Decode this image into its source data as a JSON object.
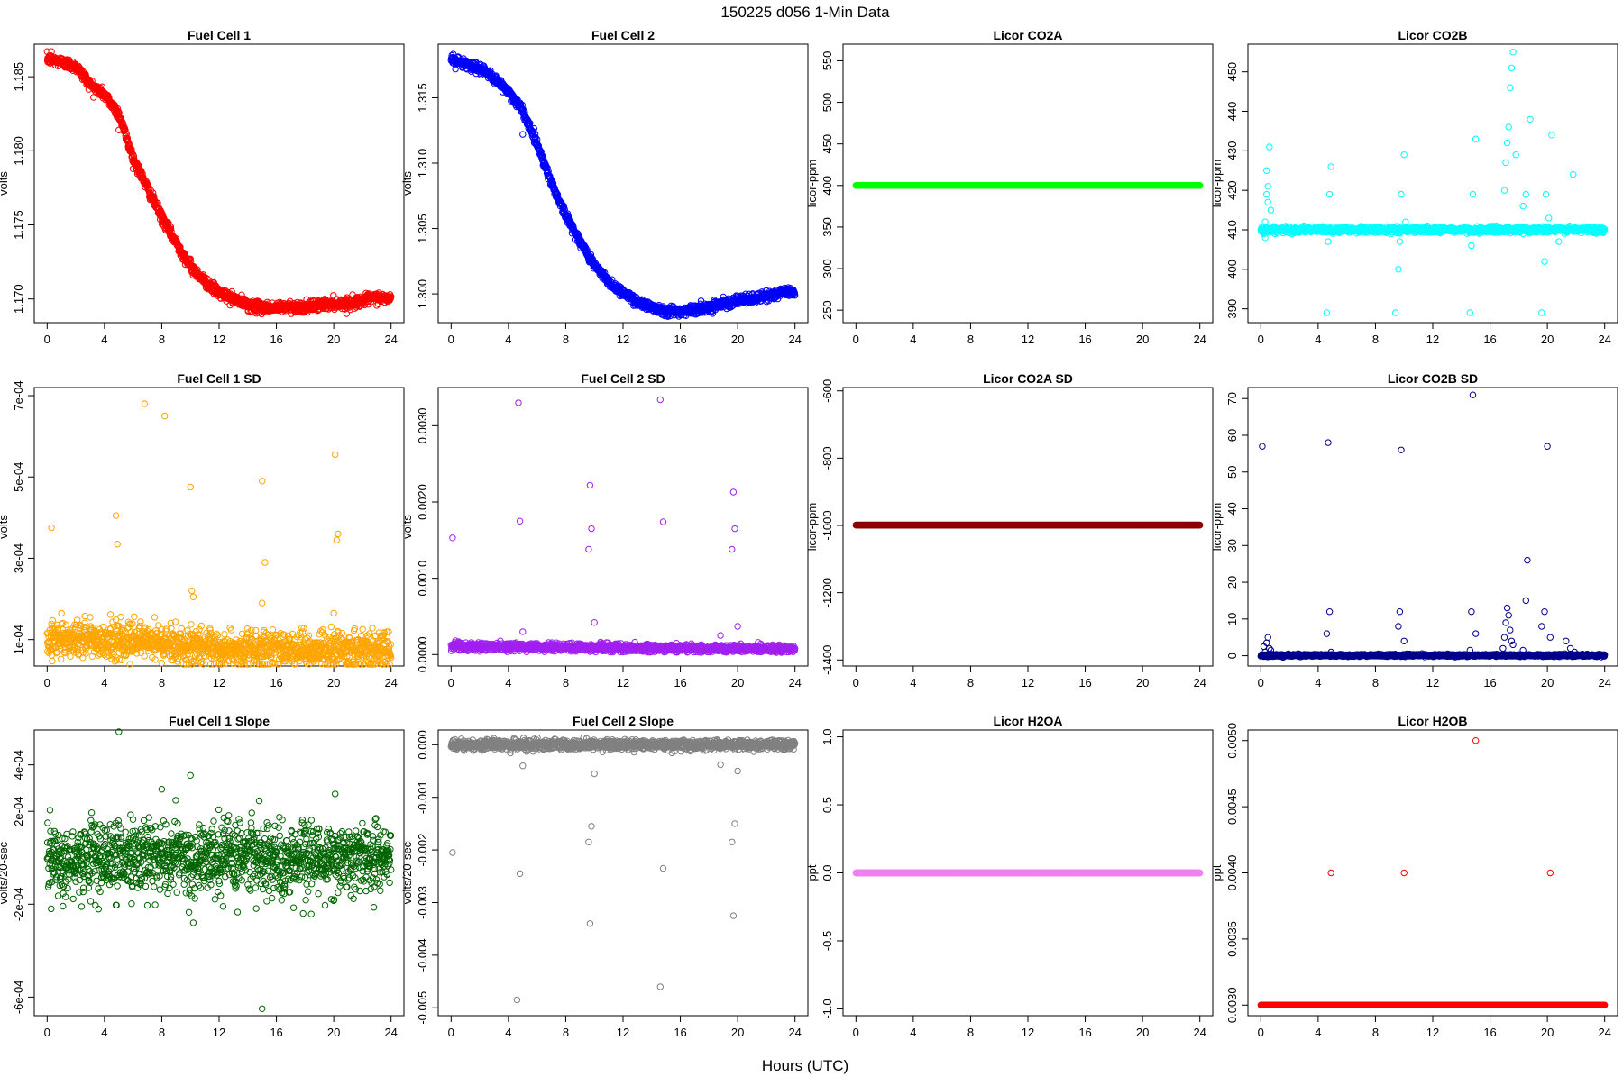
{
  "figure": {
    "title": "150225    d056    1-Min Data",
    "xlabel": "Hours (UTC)"
  },
  "chart_data": [
    {
      "type": "scatter",
      "title": "Fuel Cell 1",
      "ylabel": "volts",
      "color": "#ff0000",
      "xlim": [
        -0.9,
        24.9
      ],
      "ylim": [
        1.1684,
        1.1872
      ],
      "xticks": [
        0,
        4,
        8,
        12,
        16,
        20,
        24
      ],
      "yticks": [
        1.17,
        1.175,
        1.18,
        1.185
      ],
      "ytick_labels": [
        "1.170",
        "1.175",
        "1.180",
        "1.185"
      ],
      "curve": [
        [
          0,
          1.1862
        ],
        [
          1,
          1.186
        ],
        [
          2,
          1.1857
        ],
        [
          3,
          1.1845
        ],
        [
          4,
          1.1838
        ],
        [
          5,
          1.1825
        ],
        [
          6,
          1.1795
        ],
        [
          7,
          1.1775
        ],
        [
          8,
          1.1755
        ],
        [
          9,
          1.1738
        ],
        [
          10,
          1.1722
        ],
        [
          11,
          1.1712
        ],
        [
          12,
          1.1704
        ],
        [
          13,
          1.17
        ],
        [
          14,
          1.1696
        ],
        [
          15,
          1.1694
        ],
        [
          16,
          1.1694
        ],
        [
          17,
          1.1695
        ],
        [
          18,
          1.1694
        ],
        [
          19,
          1.1696
        ],
        [
          20,
          1.1697
        ],
        [
          21,
          1.1697
        ],
        [
          22,
          1.1699
        ],
        [
          23,
          1.1701
        ],
        [
          24,
          1.17
        ]
      ],
      "curve_noise": 0.00018,
      "outliers": [
        [
          5.0,
          1.1814
        ],
        [
          10.0,
          1.1727
        ],
        [
          0.3,
          1.1867
        ]
      ]
    },
    {
      "type": "scatter",
      "title": "Fuel Cell 2",
      "ylabel": "volts",
      "color": "#0000ff",
      "xlim": [
        -0.9,
        24.9
      ],
      "ylim": [
        1.2978,
        1.3191
      ],
      "xticks": [
        0,
        4,
        8,
        12,
        16,
        20,
        24
      ],
      "yticks": [
        1.3,
        1.305,
        1.31,
        1.315
      ],
      "ytick_labels": [
        "1.300",
        "1.305",
        "1.310",
        "1.315"
      ],
      "curve": [
        [
          0,
          1.318
        ],
        [
          1,
          1.3176
        ],
        [
          2,
          1.3172
        ],
        [
          3,
          1.3165
        ],
        [
          4,
          1.3155
        ],
        [
          5,
          1.314
        ],
        [
          6,
          1.3115
        ],
        [
          7,
          1.3085
        ],
        [
          8,
          1.306
        ],
        [
          9,
          1.304
        ],
        [
          10,
          1.3022
        ],
        [
          11,
          1.3009
        ],
        [
          12,
          1.3001
        ],
        [
          13,
          1.2994
        ],
        [
          14,
          1.299
        ],
        [
          15,
          1.2987
        ],
        [
          16,
          1.2987
        ],
        [
          17,
          1.2988
        ],
        [
          18,
          1.299
        ],
        [
          19,
          1.2993
        ],
        [
          20,
          1.2995
        ],
        [
          21,
          1.2996
        ],
        [
          22,
          1.2998
        ],
        [
          23,
          1.3001
        ],
        [
          24,
          1.3002
        ]
      ],
      "curve_noise": 0.00018,
      "outliers": [
        [
          5.0,
          1.3122
        ],
        [
          0.3,
          1.3172
        ]
      ]
    },
    {
      "type": "scatter",
      "title": "Licor CO2A",
      "ylabel": "licor-ppm",
      "color": "#00ff00",
      "xlim": [
        -0.9,
        24.9
      ],
      "ylim": [
        235,
        570
      ],
      "xticks": [
        0,
        4,
        8,
        12,
        16,
        20,
        24
      ],
      "yticks": [
        250,
        300,
        350,
        400,
        450,
        500,
        550
      ],
      "ytick_labels": [
        "250",
        "300",
        "350",
        "400",
        "450",
        "500",
        "550"
      ],
      "constant": 400
    },
    {
      "type": "scatter",
      "title": "Licor CO2B",
      "ylabel": "licor-ppm",
      "color": "#00ffff",
      "xlim": [
        -0.9,
        24.9
      ],
      "ylim": [
        386.5,
        457
      ],
      "xticks": [
        0,
        4,
        8,
        12,
        16,
        20,
        24
      ],
      "yticks": [
        390,
        400,
        410,
        420,
        430,
        440,
        450
      ],
      "ytick_labels": [
        "390",
        "400",
        "410",
        "420",
        "430",
        "440",
        "450"
      ],
      "constant": 410,
      "curve_noise": 0.35,
      "outliers": [
        [
          0.2,
          409
        ],
        [
          0.3,
          412
        ],
        [
          0.4,
          419
        ],
        [
          0.5,
          421
        ],
        [
          0.4,
          425
        ],
        [
          0.6,
          431
        ],
        [
          0.5,
          417
        ],
        [
          0.7,
          415
        ],
        [
          0.3,
          408
        ],
        [
          4.6,
          389
        ],
        [
          4.7,
          407
        ],
        [
          4.8,
          419
        ],
        [
          4.9,
          426
        ],
        [
          9.4,
          389
        ],
        [
          9.6,
          400
        ],
        [
          9.7,
          407
        ],
        [
          9.8,
          419
        ],
        [
          10.0,
          429
        ],
        [
          10.1,
          412
        ],
        [
          14.6,
          389
        ],
        [
          14.7,
          406
        ],
        [
          14.8,
          419
        ],
        [
          15.0,
          433
        ],
        [
          17.0,
          420
        ],
        [
          17.1,
          427
        ],
        [
          17.2,
          432
        ],
        [
          17.3,
          436
        ],
        [
          17.4,
          446
        ],
        [
          17.5,
          451
        ],
        [
          17.6,
          455
        ],
        [
          17.8,
          429
        ],
        [
          18.3,
          416
        ],
        [
          18.5,
          419
        ],
        [
          18.8,
          438
        ],
        [
          19.6,
          389
        ],
        [
          19.8,
          402
        ],
        [
          19.9,
          419
        ],
        [
          20.1,
          413
        ],
        [
          20.3,
          434
        ],
        [
          20.8,
          407
        ],
        [
          21.8,
          424
        ]
      ]
    },
    {
      "type": "scatter",
      "title": "Fuel Cell 1 SD",
      "ylabel": "volts",
      "color": "#ffa500",
      "xlim": [
        -0.9,
        24.9
      ],
      "ylim": [
        3.5e-05,
        0.00072
      ],
      "xticks": [
        0,
        4,
        8,
        12,
        16,
        20,
        24
      ],
      "yticks": [
        0.0001,
        0.0003,
        0.0005,
        0.0007
      ],
      "ytick_labels": [
        "1e-04",
        "3e-04",
        "5e-04",
        "7e-04"
      ],
      "baseline": [
        [
          0,
          0.000105
        ],
        [
          6,
          9.5e-05
        ],
        [
          12,
          8e-05
        ],
        [
          18,
          7.5e-05
        ],
        [
          24,
          7.5e-05
        ]
      ],
      "baseline_noise": 2.2e-05,
      "outliers": [
        [
          0.3,
          0.000375
        ],
        [
          4.8,
          0.000405
        ],
        [
          4.9,
          0.000335
        ],
        [
          6.8,
          0.00068
        ],
        [
          8.2,
          0.00065
        ],
        [
          10.0,
          0.000475
        ],
        [
          10.1,
          0.00022
        ],
        [
          10.2,
          0.000205
        ],
        [
          15.0,
          0.00049
        ],
        [
          15.2,
          0.00029
        ],
        [
          15.0,
          0.00019
        ],
        [
          20.1,
          0.000555
        ],
        [
          20.2,
          0.000345
        ],
        [
          20.3,
          0.00036
        ],
        [
          20.0,
          0.000165
        ],
        [
          7.5,
          0.000155
        ],
        [
          3.0,
          0.000155
        ],
        [
          1.0,
          0.000165
        ]
      ]
    },
    {
      "type": "scatter",
      "title": "Fuel Cell 2 SD",
      "ylabel": "volts",
      "color": "#a020f0",
      "xlim": [
        -0.9,
        24.9
      ],
      "ylim": [
        -0.00015,
        0.0035
      ],
      "xticks": [
        0,
        4,
        8,
        12,
        16,
        20,
        24
      ],
      "yticks": [
        0.0,
        0.001,
        0.002,
        0.003
      ],
      "ytick_labels": [
        "0.0000",
        "0.0010",
        "0.0020",
        "0.0030"
      ],
      "baseline": [
        [
          0,
          0.00011
        ],
        [
          12,
          9e-05
        ],
        [
          24,
          7e-05
        ]
      ],
      "baseline_noise": 2.5e-05,
      "outliers": [
        [
          0.1,
          0.00153
        ],
        [
          4.7,
          0.0033
        ],
        [
          4.8,
          0.00175
        ],
        [
          5.0,
          0.0003
        ],
        [
          9.6,
          0.00138
        ],
        [
          9.8,
          0.00165
        ],
        [
          9.7,
          0.00222
        ],
        [
          10.0,
          0.00042
        ],
        [
          14.6,
          0.00334
        ],
        [
          14.8,
          0.00174
        ],
        [
          19.6,
          0.00138
        ],
        [
          19.7,
          0.00213
        ],
        [
          19.8,
          0.00165
        ],
        [
          20.0,
          0.00037
        ],
        [
          18.8,
          0.00025
        ]
      ]
    },
    {
      "type": "scatter",
      "title": "Licor CO2A SD",
      "ylabel": "licor-ppm",
      "color": "#8b0000",
      "xlim": [
        -0.9,
        24.9
      ],
      "ylim": [
        -1418,
        -590
      ],
      "xticks": [
        0,
        4,
        8,
        12,
        16,
        20,
        24
      ],
      "yticks": [
        -1400,
        -1200,
        -1000,
        -800,
        -600
      ],
      "ytick_labels": [
        "-1400",
        "-1200",
        "-1000",
        "-800",
        "-600"
      ],
      "constant": -999
    },
    {
      "type": "scatter",
      "title": "Licor CO2B SD",
      "ylabel": "licor-ppm",
      "color": "#00008b",
      "xlim": [
        -0.9,
        24.9
      ],
      "ylim": [
        -2.8,
        73
      ],
      "xticks": [
        0,
        4,
        8,
        12,
        16,
        20,
        24
      ],
      "yticks": [
        0,
        10,
        20,
        30,
        40,
        50,
        60,
        70
      ],
      "ytick_labels": [
        "0",
        "10",
        "20",
        "30",
        "40",
        "50",
        "60",
        "70"
      ],
      "constant": 0.1,
      "curve_noise": 0.15,
      "outliers": [
        [
          0.1,
          57
        ],
        [
          0.2,
          2.5
        ],
        [
          0.3,
          1
        ],
        [
          0.4,
          3.5
        ],
        [
          0.5,
          5
        ],
        [
          0.6,
          2
        ],
        [
          0.7,
          1.5
        ],
        [
          4.6,
          6
        ],
        [
          4.7,
          58
        ],
        [
          4.8,
          12
        ],
        [
          4.9,
          1
        ],
        [
          9.6,
          8
        ],
        [
          9.8,
          56
        ],
        [
          9.7,
          12
        ],
        [
          10.0,
          4
        ],
        [
          14.6,
          1.5
        ],
        [
          14.7,
          12
        ],
        [
          14.8,
          71
        ],
        [
          15.0,
          6
        ],
        [
          16.9,
          2
        ],
        [
          17.0,
          5
        ],
        [
          17.1,
          9
        ],
        [
          17.2,
          13
        ],
        [
          17.3,
          11
        ],
        [
          17.4,
          7
        ],
        [
          17.5,
          4
        ],
        [
          17.6,
          3
        ],
        [
          18.3,
          1.5
        ],
        [
          18.5,
          15
        ],
        [
          18.6,
          26
        ],
        [
          19.6,
          8
        ],
        [
          19.8,
          12
        ],
        [
          20.0,
          57
        ],
        [
          20.2,
          5
        ],
        [
          21.3,
          4
        ],
        [
          21.6,
          2
        ],
        [
          21.9,
          1
        ]
      ]
    },
    {
      "type": "scatter",
      "title": "Fuel Cell 1 Slope",
      "ylabel": "volts/20-sec",
      "color": "#006400",
      "xlim": [
        -0.9,
        24.9
      ],
      "ylim": [
        -0.00068,
        0.00055
      ],
      "xticks": [
        0,
        4,
        8,
        12,
        16,
        20,
        24
      ],
      "yticks": [
        -0.0006,
        -0.0002,
        0.0002,
        0.0004
      ],
      "ytick_labels": [
        "-6e-04",
        "-2e-04",
        "2e-04",
        "4e-04"
      ],
      "constant": 0.0,
      "curve_noise": 7.5e-05,
      "outliers": [
        [
          0.2,
          0.000205
        ],
        [
          5.0,
          0.000545
        ],
        [
          8.0,
          0.000295
        ],
        [
          10.0,
          0.000355
        ],
        [
          14.8,
          0.000245
        ],
        [
          20.1,
          0.000275
        ],
        [
          15.0,
          -0.00065
        ],
        [
          10.2,
          -0.00028
        ],
        [
          9.9,
          -0.000235
        ],
        [
          7.0,
          -0.000205
        ],
        [
          17.2,
          -0.000215
        ],
        [
          20.0,
          -0.000185
        ]
      ]
    },
    {
      "type": "scatter",
      "title": "Fuel Cell 2 Slope",
      "ylabel": "volts/20-sec",
      "color": "#808080",
      "xlim": [
        -0.9,
        24.9
      ],
      "ylim": [
        -0.00515,
        0.00028
      ],
      "xticks": [
        0,
        4,
        8,
        12,
        16,
        20,
        24
      ],
      "yticks": [
        -0.005,
        -0.004,
        -0.003,
        -0.002,
        -0.001,
        0.0
      ],
      "ytick_labels": [
        "-0.005",
        "-0.004",
        "-0.003",
        "-0.002",
        "-0.001",
        "0.000"
      ],
      "constant": 0.0,
      "curve_noise": 4.5e-05,
      "outliers": [
        [
          0.1,
          -0.00205
        ],
        [
          4.6,
          -0.00485
        ],
        [
          4.8,
          -0.00245
        ],
        [
          5.0,
          -0.0004
        ],
        [
          9.6,
          -0.00185
        ],
        [
          9.7,
          -0.0034
        ],
        [
          9.8,
          -0.00155
        ],
        [
          10.0,
          -0.00055
        ],
        [
          14.6,
          -0.0046
        ],
        [
          14.8,
          -0.00235
        ],
        [
          19.6,
          -0.00185
        ],
        [
          19.7,
          -0.00325
        ],
        [
          19.8,
          -0.0015
        ],
        [
          20.0,
          -0.0005
        ],
        [
          18.8,
          -0.00038
        ]
      ]
    },
    {
      "type": "scatter",
      "title": "Licor H2OA",
      "ylabel": "ppt",
      "color": "#ee82ee",
      "xlim": [
        -0.9,
        24.9
      ],
      "ylim": [
        -1.05,
        1.05
      ],
      "xticks": [
        0,
        4,
        8,
        12,
        16,
        20,
        24
      ],
      "yticks": [
        -1.0,
        -0.5,
        0.0,
        0.5,
        1.0
      ],
      "ytick_labels": [
        "-1.0",
        "-0.5",
        "0.0",
        "0.5",
        "1.0"
      ],
      "constant": 0.0
    },
    {
      "type": "scatter",
      "title": "Licor H2OB",
      "ylabel": "ppt",
      "color": "#ff0000",
      "xlim": [
        -0.9,
        24.9
      ],
      "ylim": [
        0.00292,
        0.00508
      ],
      "xticks": [
        0,
        4,
        8,
        12,
        16,
        20,
        24
      ],
      "yticks": [
        0.003,
        0.0035,
        0.004,
        0.0045,
        0.005
      ],
      "ytick_labels": [
        "0.0030",
        "0.0035",
        "0.0040",
        "0.0045",
        "0.0050"
      ],
      "constant": 0.003,
      "outliers": [
        [
          4.9,
          0.004
        ],
        [
          10.0,
          0.004
        ],
        [
          15.0,
          0.005
        ],
        [
          20.2,
          0.004
        ]
      ]
    }
  ]
}
